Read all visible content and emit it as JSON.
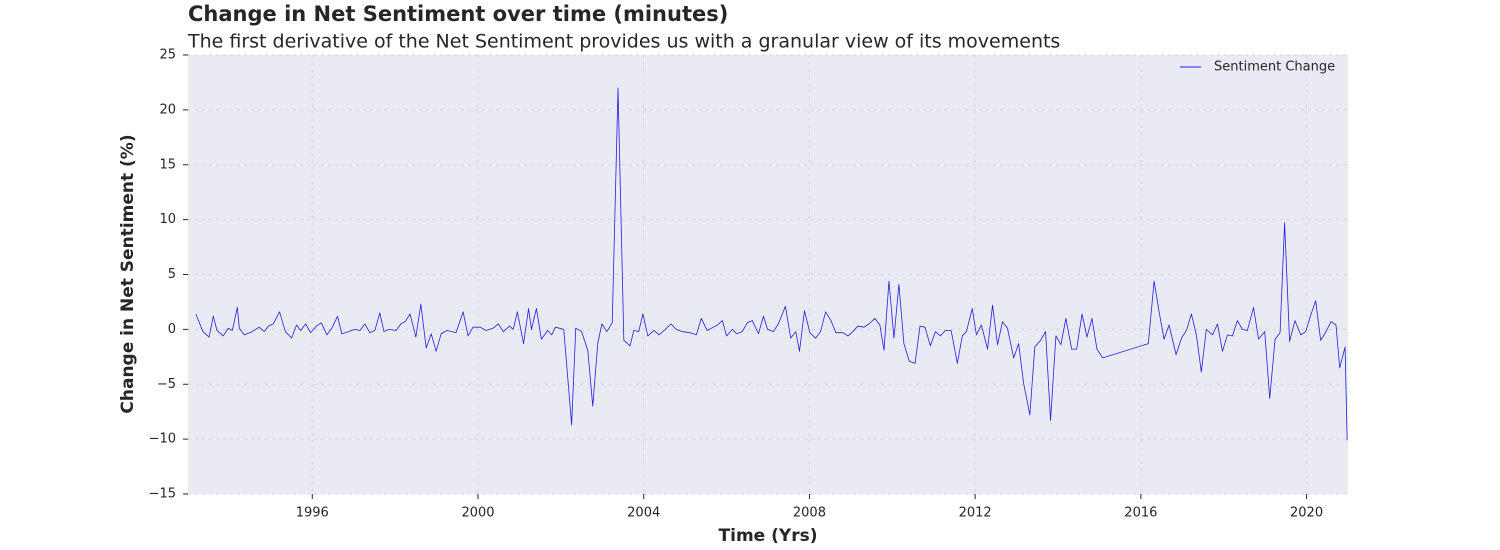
{
  "chart_data": {
    "type": "line",
    "title": "Change in Net Sentiment over time (minutes)",
    "subtitle": "The first derivative of the Net Sentiment provides us with a granular view of its movements",
    "x_label": "Time (Yrs)",
    "y_label": "Change in Net Sentiment (%)",
    "x": [
      1993.19,
      1993.36,
      1993.51,
      1993.61,
      1993.7,
      1993.85,
      1993.97,
      1994.07,
      1994.19,
      1994.24,
      1994.36,
      1994.55,
      1994.72,
      1994.84,
      1994.94,
      1995.06,
      1995.21,
      1995.35,
      1995.5,
      1995.62,
      1995.72,
      1995.84,
      1995.96,
      1996.1,
      1996.22,
      1996.35,
      1996.47,
      1996.61,
      1996.71,
      1996.88,
      1997.02,
      1997.15,
      1997.27,
      1997.39,
      1997.51,
      1997.63,
      1997.73,
      1997.85,
      1998.02,
      1998.14,
      1998.24,
      1998.36,
      1998.5,
      1998.62,
      1998.75,
      1998.87,
      1998.99,
      1999.11,
      1999.25,
      1999.47,
      1999.64,
      1999.76,
      1999.88,
      2000.05,
      2000.2,
      2000.36,
      2000.49,
      2000.61,
      2000.76,
      2000.85,
      2000.95,
      2001.1,
      2001.22,
      2001.29,
      2001.41,
      2001.53,
      2001.68,
      2001.78,
      2001.87,
      2002.07,
      2002.26,
      2002.36,
      2002.5,
      2002.65,
      2002.77,
      2002.89,
      2002.99,
      2003.11,
      2003.24,
      2003.38,
      2003.52,
      2003.67,
      2003.76,
      2003.88,
      2003.98,
      2004.1,
      2004.25,
      2004.37,
      2004.52,
      2004.66,
      2004.78,
      2004.93,
      2005.12,
      2005.27,
      2005.39,
      2005.53,
      2005.68,
      2005.78,
      2005.9,
      2006.0,
      2006.14,
      2006.24,
      2006.38,
      2006.5,
      2006.62,
      2006.77,
      2006.89,
      2006.99,
      2007.13,
      2007.25,
      2007.42,
      2007.55,
      2007.67,
      2007.76,
      2007.88,
      2008.01,
      2008.15,
      2008.27,
      2008.39,
      2008.52,
      2008.64,
      2008.81,
      2008.93,
      2009.05,
      2009.17,
      2009.32,
      2009.44,
      2009.58,
      2009.7,
      2009.8,
      2009.92,
      2010.04,
      2010.16,
      2010.28,
      2010.41,
      2010.55,
      2010.67,
      2010.79,
      2010.92,
      2011.04,
      2011.16,
      2011.28,
      2011.42,
      2011.57,
      2011.69,
      2011.79,
      2011.93,
      2012.03,
      2012.15,
      2012.3,
      2012.42,
      2012.54,
      2012.66,
      2012.78,
      2012.93,
      2013.05,
      2013.17,
      2013.32,
      2013.44,
      2013.58,
      2013.7,
      2013.82,
      2013.95,
      2014.07,
      2014.19,
      2014.33,
      2014.45,
      2014.58,
      2014.7,
      2014.82,
      2014.94,
      2015.08,
      2016.18,
      2016.32,
      2016.44,
      2016.56,
      2016.68,
      2016.85,
      2016.98,
      2017.1,
      2017.22,
      2017.34,
      2017.46,
      2017.58,
      2017.73,
      2017.85,
      2017.97,
      2018.09,
      2018.21,
      2018.33,
      2018.45,
      2018.57,
      2018.72,
      2018.84,
      2018.99,
      2019.11,
      2019.24,
      2019.36,
      2019.47,
      2019.59,
      2019.72,
      2019.86,
      2019.98,
      2020.1,
      2020.22,
      2020.34,
      2020.44,
      2020.59,
      2020.71,
      2020.8,
      2020.93,
      2020.98
    ],
    "series": [
      {
        "name": "Sentiment Change",
        "color": "#2020e0",
        "values": [
          1.4,
          -0.2,
          -0.7,
          1.2,
          -0.1,
          -0.6,
          0.1,
          -0.1,
          2.0,
          0.1,
          -0.5,
          -0.2,
          0.2,
          -0.2,
          0.3,
          0.5,
          1.6,
          -0.2,
          -0.8,
          0.4,
          -0.1,
          0.5,
          -0.3,
          0.3,
          0.6,
          -0.5,
          0.1,
          1.2,
          -0.4,
          -0.2,
          0.0,
          -0.1,
          0.5,
          -0.3,
          -0.1,
          1.5,
          -0.2,
          0.0,
          -0.1,
          0.5,
          0.7,
          1.4,
          -0.7,
          2.3,
          -1.7,
          -0.4,
          -2.0,
          -0.4,
          -0.1,
          -0.3,
          1.6,
          -0.6,
          0.2,
          0.2,
          -0.1,
          0.1,
          0.5,
          -0.2,
          0.3,
          0.0,
          1.6,
          -1.3,
          1.9,
          0.0,
          1.9,
          -0.9,
          -0.1,
          -0.5,
          0.2,
          0.0,
          -8.7,
          0.1,
          -0.2,
          -1.9,
          -7.0,
          -1.3,
          0.5,
          -0.2,
          0.6,
          22.0,
          -1.0,
          -1.5,
          -0.1,
          -0.2,
          1.4,
          -0.6,
          -0.1,
          -0.5,
          0.0,
          0.5,
          0.0,
          -0.2,
          -0.3,
          -0.5,
          1.0,
          -0.1,
          0.2,
          0.4,
          0.8,
          -0.6,
          0.0,
          -0.4,
          -0.2,
          0.6,
          0.8,
          -0.4,
          1.2,
          0.0,
          -0.2,
          0.5,
          2.1,
          -0.8,
          -0.2,
          -2.0,
          1.7,
          -0.3,
          -0.8,
          -0.2,
          1.6,
          0.8,
          -0.3,
          -0.3,
          -0.6,
          -0.2,
          0.3,
          0.2,
          0.5,
          1.0,
          0.4,
          -1.9,
          4.4,
          -0.8,
          4.1,
          -1.3,
          -2.9,
          -3.1,
          0.3,
          0.2,
          -1.5,
          -0.2,
          -0.6,
          -0.1,
          -0.1,
          -3.1,
          -0.6,
          -0.2,
          1.9,
          -0.5,
          0.4,
          -1.8,
          2.2,
          -1.4,
          0.7,
          0.1,
          -2.6,
          -1.3,
          -4.9,
          -7.8,
          -1.6,
          -1.0,
          -0.2,
          -8.3,
          -0.6,
          -1.4,
          1.0,
          -1.8,
          -1.8,
          1.4,
          -0.7,
          1.0,
          -1.8,
          -2.6,
          -1.3,
          4.4,
          1.6,
          -0.9,
          0.4,
          -2.3,
          -0.8,
          -0.1,
          1.4,
          -0.5,
          -3.9,
          0.0,
          -0.5,
          0.5,
          -2.0,
          -0.5,
          -0.6,
          0.8,
          0.0,
          -0.1,
          2.0,
          -0.9,
          -0.2,
          -6.3,
          -0.9,
          -0.3,
          9.7,
          -1.1,
          0.8,
          -0.5,
          -0.2,
          1.3,
          2.6,
          -1.0,
          -0.4,
          0.7,
          0.4,
          -3.5,
          -1.6,
          -10.1
        ]
      }
    ],
    "xlim": [
      1993,
      2021
    ],
    "xticks": [
      1996,
      2000,
      2004,
      2008,
      2012,
      2016,
      2020
    ],
    "ylim": [
      -15,
      25
    ],
    "yticks": [
      {
        "value": -15,
        "label": "−15"
      },
      {
        "value": -10,
        "label": "−10"
      },
      {
        "value": -5,
        "label": "−5"
      },
      0,
      5,
      10,
      15,
      20,
      25
    ],
    "grid": true,
    "legend": "upper right"
  }
}
